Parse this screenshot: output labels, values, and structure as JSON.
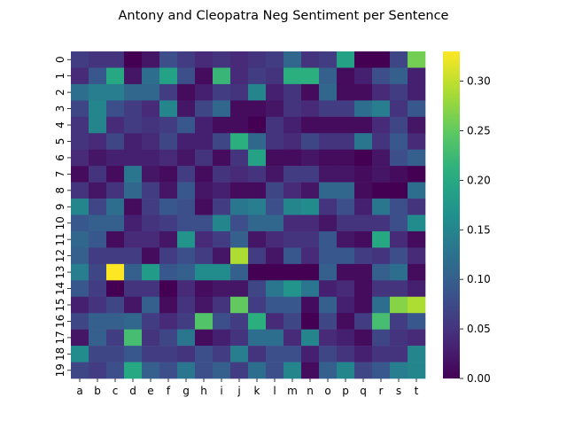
{
  "chart_data": {
    "type": "heatmap",
    "title": "Antony and Cleopatra Neg Sentiment per Sentence",
    "xlabel": "",
    "ylabel": "",
    "x_categories": [
      "a",
      "b",
      "c",
      "d",
      "e",
      "f",
      "g",
      "h",
      "i",
      "j",
      "k",
      "l",
      "m",
      "n",
      "o",
      "p",
      "q",
      "r",
      "s",
      "t"
    ],
    "y_categories": [
      "0",
      "1",
      "2",
      "3",
      "4",
      "5",
      "6",
      "7",
      "8",
      "9",
      "10",
      "11",
      "12",
      "13",
      "14",
      "15",
      "16",
      "17",
      "18",
      "19"
    ],
    "colormap": "viridis",
    "vmin": 0.0,
    "vmax": 0.33,
    "colorbar_ticks": [
      "0.00",
      "0.05",
      "0.10",
      "0.15",
      "0.20",
      "0.25",
      "0.30"
    ],
    "values": [
      [
        0.06,
        0.05,
        0.05,
        0.0,
        0.02,
        0.08,
        0.06,
        0.04,
        0.05,
        0.04,
        0.05,
        0.06,
        0.11,
        0.05,
        0.06,
        0.19,
        0.0,
        0.0,
        0.07,
        0.26
      ],
      [
        0.04,
        0.09,
        0.2,
        0.02,
        0.12,
        0.19,
        0.08,
        0.01,
        0.22,
        0.04,
        0.06,
        0.05,
        0.21,
        0.21,
        0.1,
        0.01,
        0.03,
        0.08,
        0.1,
        0.03
      ],
      [
        0.12,
        0.14,
        0.14,
        0.11,
        0.11,
        0.06,
        0.01,
        0.03,
        0.06,
        0.05,
        0.15,
        0.03,
        0.05,
        0.01,
        0.11,
        0.01,
        0.01,
        0.04,
        0.06,
        0.03
      ],
      [
        0.07,
        0.15,
        0.08,
        0.06,
        0.04,
        0.15,
        0.02,
        0.07,
        0.11,
        0.01,
        0.01,
        0.02,
        0.05,
        0.04,
        0.06,
        0.06,
        0.12,
        0.14,
        0.05,
        0.09
      ],
      [
        0.05,
        0.15,
        0.04,
        0.06,
        0.05,
        0.06,
        0.09,
        0.03,
        0.01,
        0.01,
        0.0,
        0.05,
        0.03,
        0.01,
        0.01,
        0.01,
        0.01,
        0.04,
        0.07,
        0.02
      ],
      [
        0.05,
        0.04,
        0.07,
        0.03,
        0.04,
        0.07,
        0.03,
        0.03,
        0.07,
        0.21,
        0.11,
        0.05,
        0.04,
        0.07,
        0.05,
        0.05,
        0.13,
        0.05,
        0.09,
        0.04
      ],
      [
        0.04,
        0.02,
        0.03,
        0.03,
        0.03,
        0.04,
        0.02,
        0.05,
        0.01,
        0.05,
        0.19,
        0.01,
        0.01,
        0.02,
        0.01,
        0.01,
        0.0,
        0.02,
        0.08,
        0.1
      ],
      [
        0.01,
        0.05,
        0.01,
        0.13,
        0.02,
        0.01,
        0.06,
        0.01,
        0.05,
        0.04,
        0.05,
        0.02,
        0.06,
        0.06,
        0.02,
        0.02,
        0.01,
        0.02,
        0.01,
        0.0
      ],
      [
        0.05,
        0.02,
        0.05,
        0.11,
        0.06,
        0.02,
        0.09,
        0.02,
        0.03,
        0.01,
        0.01,
        0.07,
        0.04,
        0.02,
        0.11,
        0.11,
        0.01,
        0.0,
        0.0,
        0.12
      ],
      [
        0.15,
        0.07,
        0.12,
        0.01,
        0.06,
        0.09,
        0.08,
        0.01,
        0.06,
        0.13,
        0.14,
        0.08,
        0.15,
        0.16,
        0.05,
        0.08,
        0.03,
        0.13,
        0.08,
        0.05
      ],
      [
        0.09,
        0.1,
        0.1,
        0.03,
        0.05,
        0.06,
        0.08,
        0.08,
        0.15,
        0.08,
        0.11,
        0.11,
        0.04,
        0.04,
        0.02,
        0.05,
        0.05,
        0.05,
        0.08,
        0.16
      ],
      [
        0.11,
        0.09,
        0.01,
        0.04,
        0.04,
        0.02,
        0.17,
        0.04,
        0.06,
        0.1,
        0.02,
        0.04,
        0.05,
        0.05,
        0.09,
        0.02,
        0.01,
        0.2,
        0.04,
        0.01
      ],
      [
        0.1,
        0.06,
        0.06,
        0.06,
        0.01,
        0.06,
        0.08,
        0.06,
        0.02,
        0.29,
        0.06,
        0.02,
        0.09,
        0.04,
        0.09,
        0.09,
        0.06,
        0.05,
        0.08,
        0.04
      ],
      [
        0.14,
        0.07,
        0.33,
        0.1,
        0.18,
        0.09,
        0.1,
        0.16,
        0.16,
        0.1,
        0.0,
        0.0,
        0.0,
        0.0,
        0.1,
        0.01,
        0.01,
        0.1,
        0.12,
        0.01
      ],
      [
        0.09,
        0.06,
        0.0,
        0.05,
        0.05,
        0.0,
        0.04,
        0.01,
        0.02,
        0.02,
        0.07,
        0.13,
        0.17,
        0.13,
        0.03,
        0.04,
        0.01,
        0.05,
        0.05,
        0.03
      ],
      [
        0.03,
        0.05,
        0.07,
        0.02,
        0.1,
        0.01,
        0.05,
        0.02,
        0.05,
        0.25,
        0.06,
        0.09,
        0.09,
        0.01,
        0.1,
        0.03,
        0.01,
        0.12,
        0.27,
        0.29
      ],
      [
        0.07,
        0.1,
        0.1,
        0.11,
        0.06,
        0.04,
        0.06,
        0.24,
        0.08,
        0.06,
        0.21,
        0.04,
        0.07,
        0.0,
        0.07,
        0.01,
        0.06,
        0.23,
        0.06,
        0.09
      ],
      [
        0.02,
        0.1,
        0.06,
        0.23,
        0.05,
        0.07,
        0.13,
        0.01,
        0.03,
        0.05,
        0.12,
        0.12,
        0.04,
        0.15,
        0.04,
        0.03,
        0.01,
        0.07,
        0.05,
        0.04
      ],
      [
        0.16,
        0.07,
        0.07,
        0.09,
        0.06,
        0.06,
        0.05,
        0.08,
        0.06,
        0.14,
        0.05,
        0.08,
        0.08,
        0.03,
        0.07,
        0.05,
        0.03,
        0.05,
        0.05,
        0.15
      ],
      [
        0.07,
        0.06,
        0.08,
        0.2,
        0.1,
        0.08,
        0.13,
        0.08,
        0.1,
        0.06,
        0.12,
        0.08,
        0.15,
        0.01,
        0.1,
        0.15,
        0.07,
        0.09,
        0.14,
        0.15
      ]
    ]
  }
}
